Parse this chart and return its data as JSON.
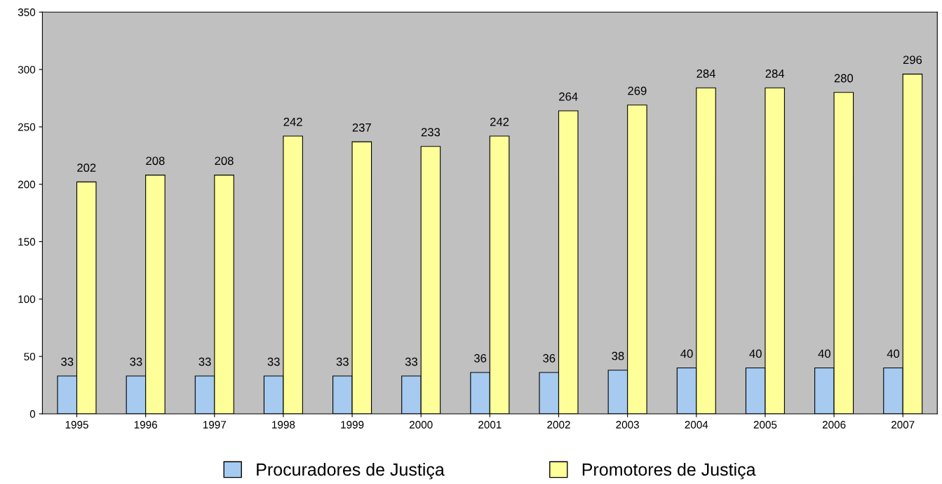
{
  "chart_data": {
    "type": "bar",
    "categories": [
      "1995",
      "1996",
      "1997",
      "1998",
      "1999",
      "2000",
      "2001",
      "2002",
      "2003",
      "2004",
      "2005",
      "2006",
      "2007"
    ],
    "series": [
      {
        "name": "Procuradores de Justiça",
        "color": "#a6caf0",
        "values": [
          33,
          33,
          33,
          33,
          33,
          33,
          36,
          36,
          38,
          40,
          40,
          40,
          40
        ]
      },
      {
        "name": "Promotores de Justiça",
        "color": "#ffff99",
        "values": [
          202,
          208,
          208,
          242,
          237,
          233,
          242,
          264,
          269,
          284,
          284,
          280,
          296
        ]
      }
    ],
    "ylim": [
      0,
      350
    ],
    "yticks": [
      0,
      50,
      100,
      150,
      200,
      250,
      300,
      350
    ],
    "data_labels": true,
    "grid": false,
    "legend": "bottom"
  }
}
